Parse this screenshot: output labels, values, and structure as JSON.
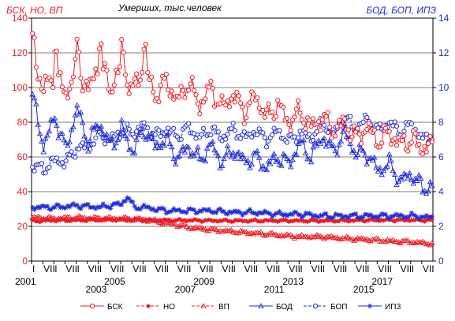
{
  "chart_data": {
    "type": "line",
    "title": "Умерших, тыс.человек",
    "left_axis_title": "БСК, НО, ВП",
    "right_axis_title": "БОД, БОП, ИПЗ",
    "left_axis_color": "#ee1c25",
    "right_axis_color": "#1f2bd6",
    "y_left_ticks": [
      "0",
      "20",
      "40",
      "60",
      "80",
      "100",
      "120",
      "140"
    ],
    "y_right_ticks": [
      "0",
      "2",
      "4",
      "6",
      "8",
      "10",
      "12",
      "14"
    ],
    "ylim_left": [
      0,
      140
    ],
    "ylim_right": [
      0,
      14
    ],
    "x_month_labels": [
      "I",
      "VII"
    ],
    "x_year_labels": [
      "2001",
      "2003",
      "2005",
      "2007",
      "2009",
      "2011",
      "2013",
      "2015",
      "2017"
    ],
    "x_start_year": 2001,
    "x_end_year": 2018,
    "grid": "horizontal",
    "legend_position": "bottom",
    "series": [
      {
        "name": "БСК",
        "axis": "left",
        "color": "#ee1c25",
        "marker": "circle",
        "dash": "none",
        "anchors": [
          [
            "2001-01",
            120
          ],
          [
            "2001-07",
            98
          ],
          [
            "2002-01",
            110
          ],
          [
            "2002-07",
            96
          ],
          [
            "2003-01",
            112
          ],
          [
            "2003-07",
            98
          ],
          [
            "2004-01",
            115
          ],
          [
            "2004-07",
            100
          ],
          [
            "2005-01",
            112
          ],
          [
            "2005-07",
            98
          ],
          [
            "2006-01",
            113
          ],
          [
            "2006-07",
            95
          ],
          [
            "2007-01",
            104
          ],
          [
            "2007-07",
            92
          ],
          [
            "2008-01",
            103
          ],
          [
            "2008-07",
            90
          ],
          [
            "2009-01",
            100
          ],
          [
            "2009-07",
            88
          ],
          [
            "2010-01",
            96
          ],
          [
            "2010-07",
            86
          ],
          [
            "2011-01",
            95
          ],
          [
            "2011-07",
            83
          ],
          [
            "2012-01",
            90
          ],
          [
            "2012-07",
            80
          ],
          [
            "2013-01",
            86
          ],
          [
            "2013-07",
            77
          ],
          [
            "2014-01",
            83
          ],
          [
            "2014-07",
            75
          ],
          [
            "2015-01",
            80
          ],
          [
            "2015-07",
            71
          ],
          [
            "2016-01",
            77
          ],
          [
            "2016-07",
            69
          ],
          [
            "2017-01",
            74
          ],
          [
            "2017-07",
            67
          ],
          [
            "2018-01",
            70
          ],
          [
            "2018-07",
            65
          ],
          [
            "2018-12",
            67
          ]
        ]
      },
      {
        "name": "НО",
        "axis": "left",
        "color": "#ee1c25",
        "marker": "diamond",
        "dash": "4,2",
        "anchors": [
          [
            "2001-01",
            23
          ],
          [
            "2002-01",
            23.5
          ],
          [
            "2003-01",
            23.5
          ],
          [
            "2004-01",
            23.8
          ],
          [
            "2005-01",
            23.8
          ],
          [
            "2006-01",
            23.5
          ],
          [
            "2007-01",
            23.5
          ],
          [
            "2008-01",
            23.5
          ],
          [
            "2009-01",
            23.3
          ],
          [
            "2010-01",
            23.2
          ],
          [
            "2011-01",
            23.2
          ],
          [
            "2012-01",
            23.3
          ],
          [
            "2013-01",
            23.2
          ],
          [
            "2014-01",
            23.2
          ],
          [
            "2015-01",
            23.3
          ],
          [
            "2016-01",
            23.5
          ],
          [
            "2017-01",
            23.6
          ],
          [
            "2018-01",
            23.6
          ],
          [
            "2018-12",
            23.5
          ]
        ]
      },
      {
        "name": "ВП",
        "axis": "left",
        "color": "#ee1c25",
        "marker": "triangle",
        "dash": "4,2",
        "anchors": [
          [
            "2001-01",
            25
          ],
          [
            "2002-01",
            24.5
          ],
          [
            "2003-01",
            25
          ],
          [
            "2004-01",
            24.5
          ],
          [
            "2005-01",
            24.5
          ],
          [
            "2006-01",
            24
          ],
          [
            "2007-01",
            22
          ],
          [
            "2008-01",
            19.5
          ],
          [
            "2009-01",
            18
          ],
          [
            "2010-01",
            17
          ],
          [
            "2011-01",
            16
          ],
          [
            "2012-01",
            15
          ],
          [
            "2013-01",
            14
          ],
          [
            "2014-01",
            14
          ],
          [
            "2015-01",
            13
          ],
          [
            "2016-01",
            12.5
          ],
          [
            "2017-01",
            11.5
          ],
          [
            "2018-01",
            11
          ],
          [
            "2018-12",
            10
          ]
        ]
      },
      {
        "name": "БОД",
        "axis": "right",
        "color": "#1f2bd6",
        "marker": "triangle",
        "dash": "none",
        "anchors": [
          [
            "2001-01",
            9.5
          ],
          [
            "2001-07",
            6.6
          ],
          [
            "2002-01",
            8.3
          ],
          [
            "2002-07",
            6.4
          ],
          [
            "2003-01",
            8.8
          ],
          [
            "2003-07",
            6.8
          ],
          [
            "2004-01",
            8.0
          ],
          [
            "2004-07",
            6.6
          ],
          [
            "2005-01",
            7.6
          ],
          [
            "2005-07",
            6.3
          ],
          [
            "2006-01",
            7.6
          ],
          [
            "2006-07",
            6.6
          ],
          [
            "2007-01",
            7.0
          ],
          [
            "2007-07",
            5.9
          ],
          [
            "2008-01",
            6.6
          ],
          [
            "2008-07",
            5.8
          ],
          [
            "2009-01",
            6.7
          ],
          [
            "2009-07",
            5.7
          ],
          [
            "2010-01",
            6.4
          ],
          [
            "2010-07",
            5.7
          ],
          [
            "2011-01",
            6.0
          ],
          [
            "2011-07",
            5.4
          ],
          [
            "2012-01",
            6.0
          ],
          [
            "2012-07",
            5.6
          ],
          [
            "2013-01",
            6.8
          ],
          [
            "2013-07",
            6.0
          ],
          [
            "2014-01",
            7.2
          ],
          [
            "2014-07",
            6.3
          ],
          [
            "2015-01",
            7.4
          ],
          [
            "2015-07",
            6.2
          ],
          [
            "2016-01",
            6.2
          ],
          [
            "2016-07",
            5.2
          ],
          [
            "2017-01",
            5.6
          ],
          [
            "2017-07",
            4.6
          ],
          [
            "2018-01",
            5.0
          ],
          [
            "2018-07",
            4.2
          ],
          [
            "2018-12",
            4.3
          ]
        ]
      },
      {
        "name": "БОП",
        "axis": "right",
        "color": "#1f2bd6",
        "marker": "circle-open",
        "dash": "4,2",
        "anchors": [
          [
            "2001-01",
            5.5
          ],
          [
            "2001-07",
            5.3
          ],
          [
            "2002-01",
            5.8
          ],
          [
            "2002-07",
            5.7
          ],
          [
            "2003-01",
            6.5
          ],
          [
            "2003-07",
            6.6
          ],
          [
            "2004-01",
            7.3
          ],
          [
            "2004-07",
            7.0
          ],
          [
            "2005-01",
            7.5
          ],
          [
            "2005-07",
            7.4
          ],
          [
            "2006-01",
            7.8
          ],
          [
            "2006-07",
            7.2
          ],
          [
            "2007-01",
            7.6
          ],
          [
            "2007-07",
            7.2
          ],
          [
            "2008-01",
            7.7
          ],
          [
            "2008-07",
            7.1
          ],
          [
            "2009-01",
            7.6
          ],
          [
            "2009-07",
            7.1
          ],
          [
            "2010-01",
            7.6
          ],
          [
            "2010-07",
            7.1
          ],
          [
            "2011-01",
            7.5
          ],
          [
            "2011-07",
            7.0
          ],
          [
            "2012-01",
            7.5
          ],
          [
            "2012-07",
            6.9
          ],
          [
            "2013-01",
            7.4
          ],
          [
            "2013-07",
            7.1
          ],
          [
            "2014-01",
            8.0
          ],
          [
            "2014-07",
            7.3
          ],
          [
            "2015-01",
            8.3
          ],
          [
            "2015-07",
            7.6
          ],
          [
            "2016-01",
            8.2
          ],
          [
            "2016-07",
            7.5
          ],
          [
            "2017-01",
            8.0
          ],
          [
            "2017-07",
            7.4
          ],
          [
            "2018-01",
            7.9
          ],
          [
            "2018-07",
            7.0
          ],
          [
            "2018-12",
            7.2
          ]
        ]
      },
      {
        "name": "ИПЗ",
        "axis": "right",
        "color": "#1f2bd6",
        "marker": "star",
        "dash": "none",
        "anchors": [
          [
            "2001-01",
            3.1
          ],
          [
            "2002-01",
            3.1
          ],
          [
            "2003-01",
            3.2
          ],
          [
            "2004-01",
            3.1
          ],
          [
            "2005-01",
            3.3
          ],
          [
            "2005-04",
            3.7
          ],
          [
            "2005-08",
            3.1
          ],
          [
            "2006-01",
            3.1
          ],
          [
            "2007-01",
            2.9
          ],
          [
            "2008-01",
            2.9
          ],
          [
            "2009-01",
            2.9
          ],
          [
            "2010-01",
            2.8
          ],
          [
            "2011-01",
            2.8
          ],
          [
            "2012-01",
            2.7
          ],
          [
            "2013-01",
            2.7
          ],
          [
            "2014-01",
            2.6
          ],
          [
            "2015-01",
            2.6
          ],
          [
            "2016-01",
            2.6
          ],
          [
            "2017-01",
            2.6
          ],
          [
            "2018-01",
            2.6
          ],
          [
            "2018-12",
            2.5
          ]
        ]
      }
    ]
  }
}
